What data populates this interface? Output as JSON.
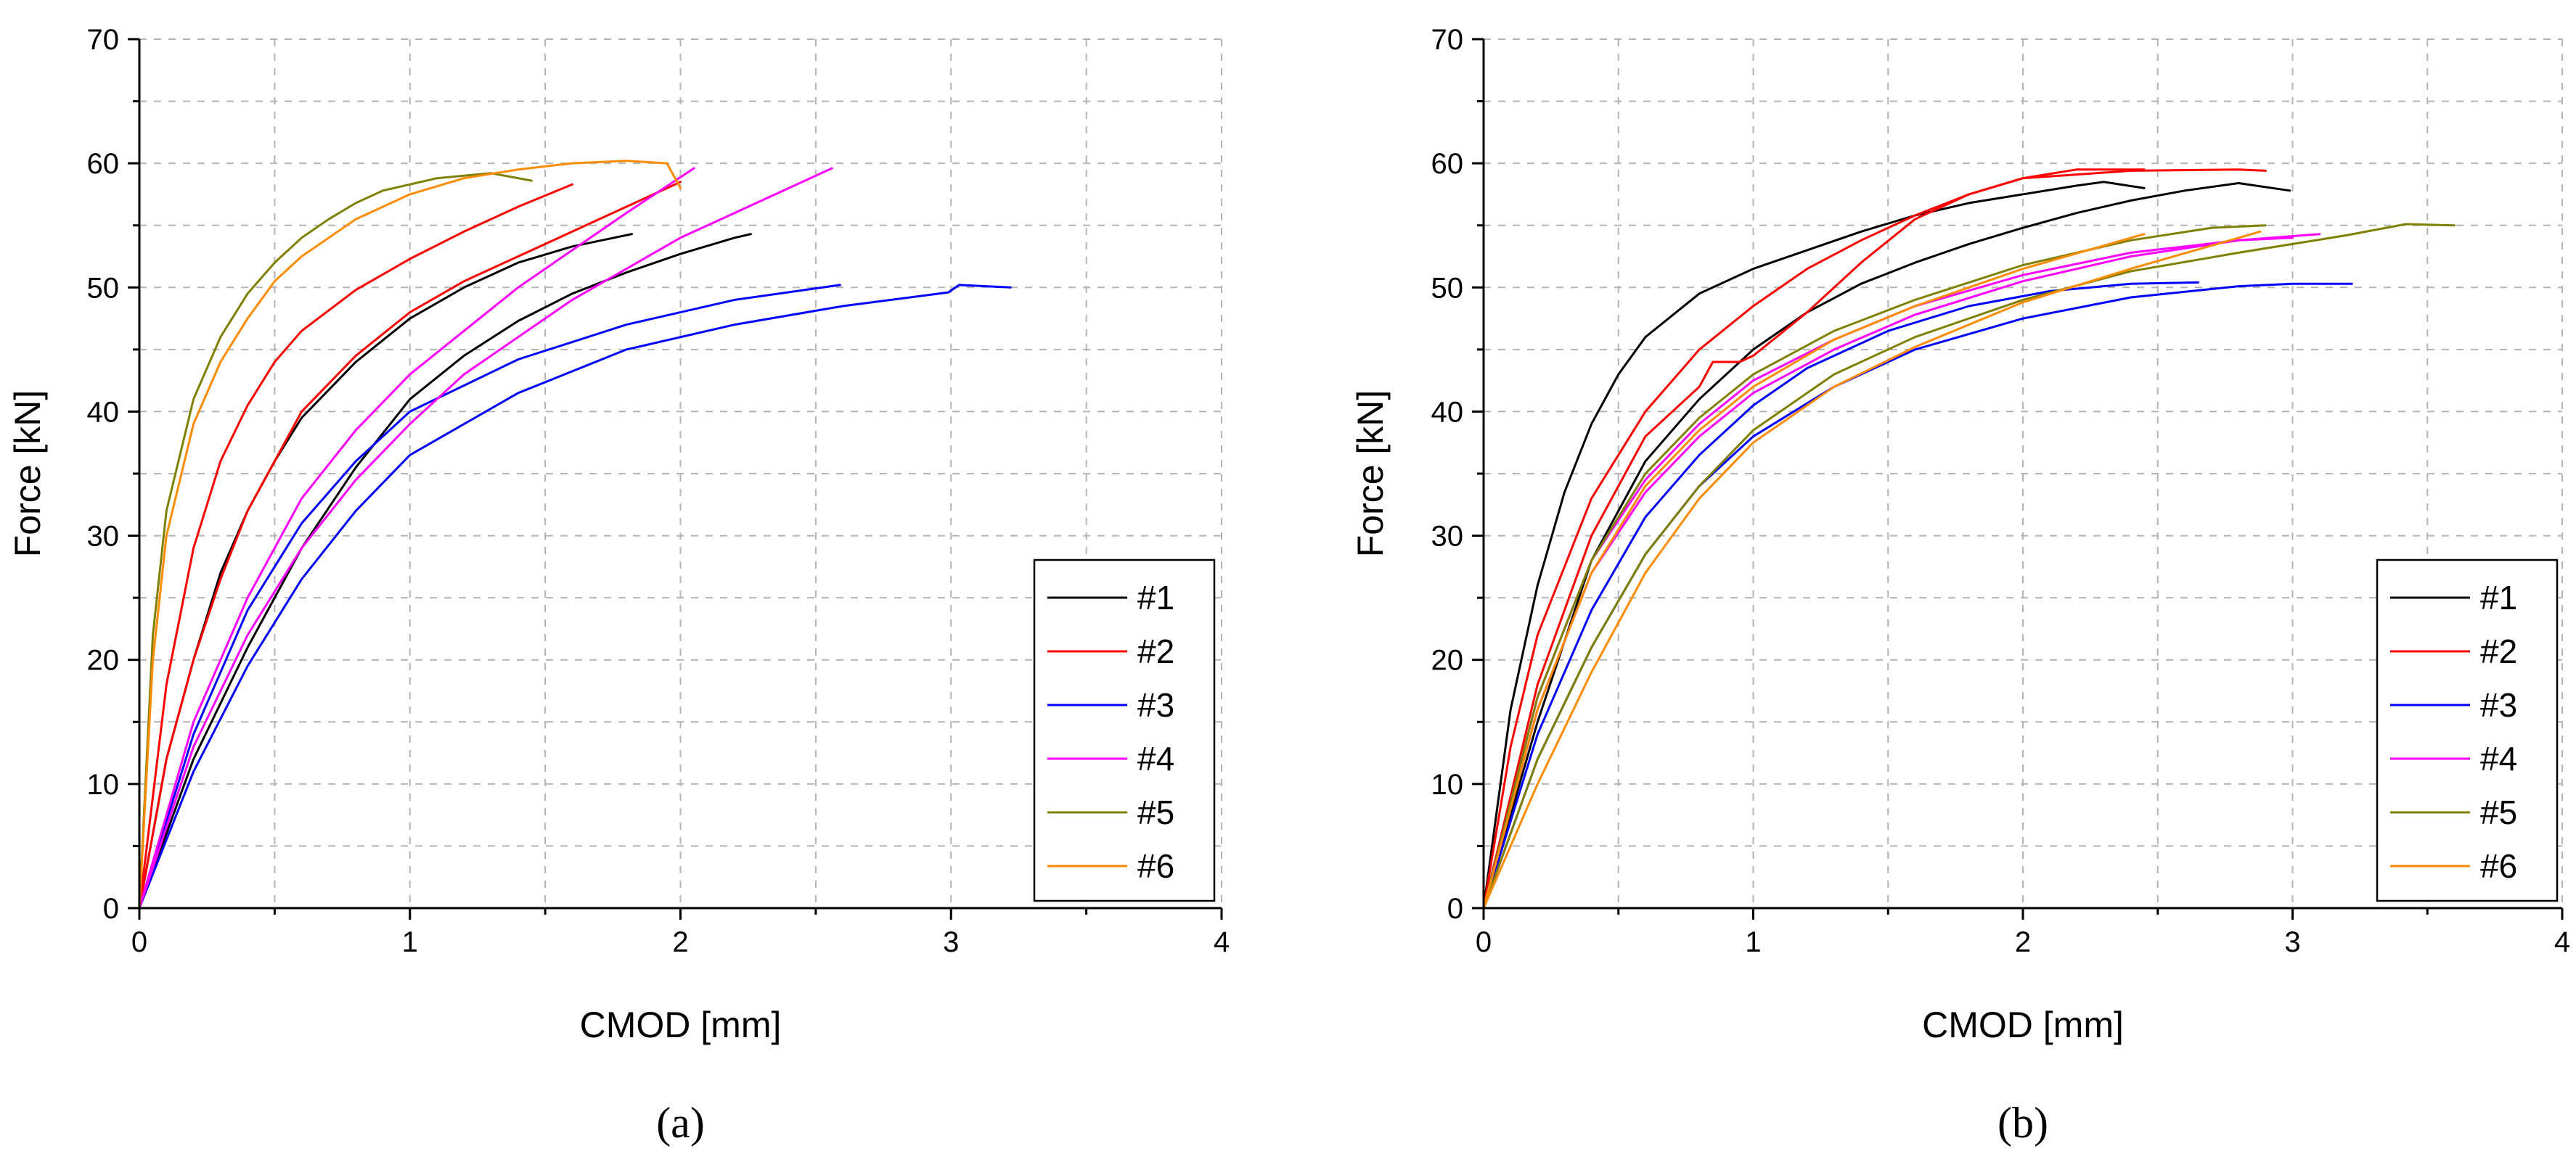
{
  "chart_data": [
    {
      "type": "line",
      "panel_label": "(a)",
      "xlabel": "CMOD [mm]",
      "ylabel": "Force [kN]",
      "xlim": [
        0,
        4
      ],
      "ylim": [
        0,
        70
      ],
      "x_ticks": [
        0,
        1,
        2,
        3,
        4
      ],
      "y_ticks": [
        0,
        10,
        20,
        30,
        40,
        50,
        60,
        70
      ],
      "grid": true,
      "legend_position": "bottom-right",
      "series": [
        {
          "name": "#1",
          "color": "#000000",
          "x": [
            0,
            0.1,
            0.2,
            0.3,
            0.4,
            0.5,
            0.6,
            0.8,
            1.0,
            1.2,
            1.4,
            1.6,
            1.82
          ],
          "y": [
            0,
            12,
            20,
            27,
            32,
            36,
            39.5,
            44,
            47.5,
            50,
            52,
            53.3,
            54.3
          ]
        },
        {
          "name": "#1",
          "color": "#000000",
          "x": [
            0,
            0.2,
            0.4,
            0.6,
            0.8,
            1.0,
            1.2,
            1.4,
            1.6,
            1.8,
            2.0,
            2.2,
            2.26
          ],
          "y": [
            0,
            12,
            21,
            29,
            35.5,
            41,
            44.5,
            47.3,
            49.5,
            51.2,
            52.7,
            54,
            54.3
          ]
        },
        {
          "name": "#2",
          "color": "#ff0000",
          "x": [
            0,
            0.1,
            0.2,
            0.3,
            0.4,
            0.5,
            0.6,
            0.8,
            1.0,
            1.2,
            1.4,
            1.6
          ],
          "y": [
            0,
            18,
            29,
            36,
            40.5,
            44,
            46.5,
            49.8,
            52.3,
            54.5,
            56.5,
            58.3
          ]
        },
        {
          "name": "#2",
          "color": "#ff0000",
          "x": [
            0,
            0.1,
            0.2,
            0.3,
            0.4,
            0.6,
            0.8,
            1.0,
            1.2,
            1.4,
            1.6,
            1.8,
            2.0
          ],
          "y": [
            0,
            12,
            20,
            26.5,
            32,
            40,
            44.5,
            48,
            50.5,
            52.5,
            54.5,
            56.5,
            58.5
          ]
        },
        {
          "name": "#3",
          "color": "#0000ff",
          "x": [
            0,
            0.2,
            0.4,
            0.6,
            0.8,
            1.0,
            1.4,
            1.8,
            2.2,
            2.59
          ],
          "y": [
            0,
            14,
            24,
            31,
            36,
            40,
            44.2,
            47,
            49,
            50.2
          ]
        },
        {
          "name": "#3",
          "color": "#0000ff",
          "x": [
            0,
            0.2,
            0.4,
            0.6,
            0.8,
            1.0,
            1.4,
            1.8,
            2.2,
            2.6,
            2.99,
            3.03,
            3.22
          ],
          "y": [
            0,
            11,
            19.5,
            26.5,
            32,
            36.5,
            41.5,
            45,
            47,
            48.5,
            49.6,
            50.2,
            50
          ]
        },
        {
          "name": "#4",
          "color": "#ff00ff",
          "x": [
            0,
            0.2,
            0.4,
            0.6,
            0.8,
            1.0,
            1.2,
            1.4,
            1.6,
            1.8,
            2.05
          ],
          "y": [
            0,
            15,
            25,
            33,
            38.5,
            43,
            46.5,
            50,
            53,
            56,
            59.6
          ]
        },
        {
          "name": "#4",
          "color": "#ff00ff",
          "x": [
            0,
            0.2,
            0.4,
            0.6,
            0.8,
            1.0,
            1.2,
            1.4,
            1.6,
            1.8,
            2.0,
            2.2,
            2.4,
            2.56
          ],
          "y": [
            0,
            13,
            22,
            29,
            34.5,
            39,
            43,
            46,
            49,
            51.5,
            54,
            56,
            58,
            59.6
          ]
        },
        {
          "name": "#5",
          "color": "#808000",
          "x": [
            0,
            0.05,
            0.1,
            0.2,
            0.3,
            0.4,
            0.5,
            0.6,
            0.7,
            0.8,
            0.9,
            1.0,
            1.1,
            1.3,
            1.45
          ],
          "y": [
            0,
            22,
            32,
            41,
            46,
            49.5,
            52,
            54,
            55.5,
            56.8,
            57.8,
            58.3,
            58.8,
            59.2,
            58.6
          ]
        },
        {
          "name": "#6",
          "color": "#ff8c00",
          "x": [
            0,
            0.05,
            0.1,
            0.2,
            0.3,
            0.4,
            0.5,
            0.6,
            0.8,
            1.0,
            1.2,
            1.4,
            1.6,
            1.8,
            1.95,
            2.0
          ],
          "y": [
            0,
            20,
            30,
            39,
            44,
            47.5,
            50.5,
            52.5,
            55.5,
            57.5,
            58.8,
            59.5,
            60,
            60.2,
            60,
            58
          ]
        }
      ]
    },
    {
      "type": "line",
      "panel_label": "(b)",
      "xlabel": "CMOD [mm]",
      "ylabel": "Force [kN]",
      "xlim": [
        0,
        4
      ],
      "ylim": [
        0,
        70
      ],
      "x_ticks": [
        0,
        1,
        2,
        3,
        4
      ],
      "y_ticks": [
        0,
        10,
        20,
        30,
        40,
        50,
        60,
        70
      ],
      "grid": true,
      "legend_position": "bottom-right",
      "series": [
        {
          "name": "#1",
          "color": "#000000",
          "x": [
            0,
            0.1,
            0.2,
            0.3,
            0.4,
            0.5,
            0.6,
            0.8,
            1.0,
            1.2,
            1.4,
            1.6,
            1.8,
            2.0,
            2.2,
            2.3,
            2.45
          ],
          "y": [
            0,
            16,
            26,
            33.5,
            39,
            43,
            46,
            49.5,
            51.5,
            53,
            54.5,
            55.8,
            56.8,
            57.5,
            58.2,
            58.5,
            58
          ]
        },
        {
          "name": "#1",
          "color": "#000000",
          "x": [
            0,
            0.2,
            0.4,
            0.6,
            0.8,
            1.0,
            1.2,
            1.4,
            1.6,
            1.8,
            2.0,
            2.2,
            2.4,
            2.6,
            2.8,
            2.99
          ],
          "y": [
            0,
            15,
            28,
            36,
            41,
            45,
            48,
            50.3,
            52,
            53.5,
            54.8,
            56,
            57,
            57.8,
            58.4,
            57.8
          ]
        },
        {
          "name": "#2",
          "color": "#ff0000",
          "x": [
            0,
            0.1,
            0.2,
            0.4,
            0.6,
            0.8,
            1.0,
            1.2,
            1.4,
            1.6,
            1.8,
            2.0,
            2.2,
            2.45
          ],
          "y": [
            0,
            13,
            22,
            33,
            40,
            45,
            48.5,
            51.5,
            53.8,
            55.8,
            57.5,
            58.8,
            59.5,
            59.5
          ]
        },
        {
          "name": "#2",
          "color": "#ff0000",
          "x": [
            0,
            0.2,
            0.4,
            0.6,
            0.8,
            0.85,
            0.95,
            1.0,
            1.2,
            1.4,
            1.6,
            1.8,
            2.0,
            2.4,
            2.8,
            2.9
          ],
          "y": [
            0,
            18,
            30,
            38,
            42,
            44,
            44,
            44.5,
            48,
            52,
            55.5,
            57.5,
            58.8,
            59.4,
            59.5,
            59.4
          ]
        },
        {
          "name": "#3",
          "color": "#0000ff",
          "x": [
            0,
            0.2,
            0.4,
            0.6,
            0.8,
            1.0,
            1.2,
            1.5,
            1.8,
            2.1,
            2.4,
            2.65
          ],
          "y": [
            0,
            14,
            24,
            31.5,
            36.5,
            40.5,
            43.5,
            46.5,
            48.5,
            49.7,
            50.3,
            50.4
          ]
        },
        {
          "name": "#3",
          "color": "#0000ff",
          "x": [
            0,
            0.2,
            0.4,
            0.6,
            0.8,
            1.0,
            1.3,
            1.6,
            2.0,
            2.4,
            2.8,
            3.0,
            3.22
          ],
          "y": [
            0,
            12,
            21,
            28.5,
            34,
            38,
            42,
            45,
            47.5,
            49.2,
            50.1,
            50.3,
            50.3
          ]
        },
        {
          "name": "#4",
          "color": "#ff00ff",
          "x": [
            0,
            0.2,
            0.4,
            0.6,
            0.8,
            1.0,
            1.3,
            1.6,
            2.0,
            2.4,
            2.8,
            3.1
          ],
          "y": [
            0,
            16,
            27,
            33.5,
            38,
            41.5,
            45,
            47.8,
            50.5,
            52.5,
            53.8,
            54.3
          ]
        },
        {
          "name": "#4",
          "color": "#ff00ff",
          "x": [
            0,
            0.2,
            0.4,
            0.6,
            0.8,
            1.0,
            1.3,
            1.6,
            2.0,
            2.4,
            2.8,
            3.0
          ],
          "y": [
            0,
            17,
            28,
            34.5,
            39,
            42.5,
            45.8,
            48.5,
            51,
            52.8,
            53.8,
            54
          ]
        },
        {
          "name": "#5",
          "color": "#808000",
          "x": [
            0,
            0.2,
            0.4,
            0.6,
            0.8,
            1.0,
            1.3,
            1.6,
            2.0,
            2.4,
            2.7,
            2.9
          ],
          "y": [
            0,
            17,
            28,
            35,
            39.5,
            43,
            46.5,
            49,
            51.8,
            53.8,
            54.8,
            55
          ]
        },
        {
          "name": "#5",
          "color": "#808000",
          "x": [
            0,
            0.2,
            0.4,
            0.6,
            0.8,
            1.0,
            1.3,
            1.6,
            2.0,
            2.4,
            2.8,
            3.2,
            3.42,
            3.6
          ],
          "y": [
            0,
            12,
            21,
            28.5,
            34,
            38.5,
            43,
            46,
            49,
            51.3,
            52.8,
            54.2,
            55.1,
            55
          ]
        },
        {
          "name": "#6",
          "color": "#ff8c00",
          "x": [
            0,
            0.2,
            0.4,
            0.6,
            0.8,
            1.0,
            1.3,
            1.6,
            2.0,
            2.45
          ],
          "y": [
            0,
            16,
            27,
            34,
            38.5,
            42,
            45.8,
            48.5,
            51.5,
            54.3
          ]
        },
        {
          "name": "#6",
          "color": "#ff8c00",
          "x": [
            0,
            0.2,
            0.4,
            0.6,
            0.8,
            1.0,
            1.3,
            1.6,
            2.0,
            2.4,
            2.88
          ],
          "y": [
            0,
            10,
            19,
            27,
            33,
            37.5,
            42,
            45.2,
            48.8,
            51.5,
            54.5
          ]
        }
      ]
    }
  ],
  "legends": [
    {
      "labels": [
        "#1",
        "#2",
        "#3",
        "#4",
        "#5",
        "#6"
      ],
      "colors": [
        "#000000",
        "#ff0000",
        "#0000ff",
        "#ff00ff",
        "#808000",
        "#ff8c00"
      ]
    },
    {
      "labels": [
        "#1",
        "#2",
        "#3",
        "#4",
        "#5",
        "#6"
      ],
      "colors": [
        "#000000",
        "#ff0000",
        "#0000ff",
        "#ff00ff",
        "#808000",
        "#ff8c00"
      ]
    }
  ]
}
